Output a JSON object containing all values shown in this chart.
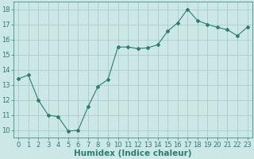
{
  "x": [
    0,
    1,
    2,
    3,
    4,
    5,
    6,
    7,
    8,
    9,
    10,
    11,
    12,
    13,
    14,
    15,
    16,
    17,
    18,
    19,
    20,
    21,
    22,
    23
  ],
  "y": [
    13.4,
    13.65,
    12.0,
    11.0,
    10.9,
    9.95,
    10.0,
    11.55,
    12.9,
    13.35,
    15.5,
    15.5,
    15.4,
    15.45,
    15.65,
    16.55,
    17.1,
    18.0,
    17.25,
    17.0,
    16.8,
    16.65,
    16.25,
    16.8
  ],
  "line_color": "#2e7d6e",
  "marker": "D",
  "marker_size": 2.0,
  "bg_color": "#cce8e4",
  "grid_color": "#aaccc8",
  "xlabel": "Humidex (Indice chaleur)",
  "xlim": [
    -0.5,
    23.5
  ],
  "ylim": [
    9.5,
    18.5
  ],
  "yticks": [
    10,
    11,
    12,
    13,
    14,
    15,
    16,
    17,
    18
  ],
  "xticks": [
    0,
    1,
    2,
    3,
    4,
    5,
    6,
    7,
    8,
    9,
    10,
    11,
    12,
    13,
    14,
    15,
    16,
    17,
    18,
    19,
    20,
    21,
    22,
    23
  ],
  "xtick_labels": [
    "0",
    "1",
    "2",
    "3",
    "4",
    "5",
    "6",
    "7",
    "8",
    "9",
    "10",
    "11",
    "12",
    "13",
    "14",
    "15",
    "16",
    "17",
    "18",
    "19",
    "20",
    "21",
    "22",
    "23"
  ],
  "tick_fontsize": 6.0,
  "xlabel_fontsize": 7.5,
  "linewidth": 0.8
}
